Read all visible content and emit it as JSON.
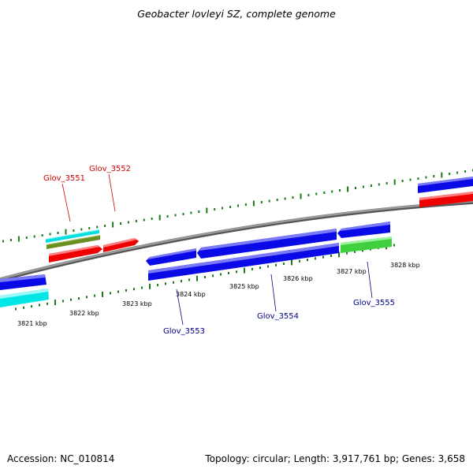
{
  "header": {
    "title": "Geobacter lovleyi SZ, complete genome"
  },
  "footer": {
    "accession": "Accession: NC_010814",
    "summary": "Topology: circular; Length: 3,917,761 bp; Genes: 3,658"
  },
  "colors": {
    "backbone": "#8c8c8c",
    "tick": "#1a7a1a",
    "label_top": "#d40000",
    "label_bottom": "#00008b",
    "blue": "#0a0ae6",
    "red": "#ee0000",
    "cyan": "#00e6e6",
    "olive": "#6b8e23",
    "green": "#3fcf3f"
  },
  "scale": {
    "ticks": [
      {
        "label": "3821 kbp"
      },
      {
        "label": "3822 kbp"
      },
      {
        "label": "3823 kbp"
      },
      {
        "label": "3824 kbp"
      },
      {
        "label": "3825 kbp"
      },
      {
        "label": "3826 kbp"
      },
      {
        "label": "3827 kbp"
      },
      {
        "label": "3828 kbp"
      }
    ]
  },
  "gene_labels": [
    {
      "text": "Glov_3551",
      "strand": "top"
    },
    {
      "text": "Glov_3552",
      "strand": "top"
    },
    {
      "text": "Glov_3553",
      "strand": "bottom"
    },
    {
      "text": "Glov_3554",
      "strand": "bottom"
    },
    {
      "text": "Glov_3555",
      "strand": "bottom"
    }
  ]
}
